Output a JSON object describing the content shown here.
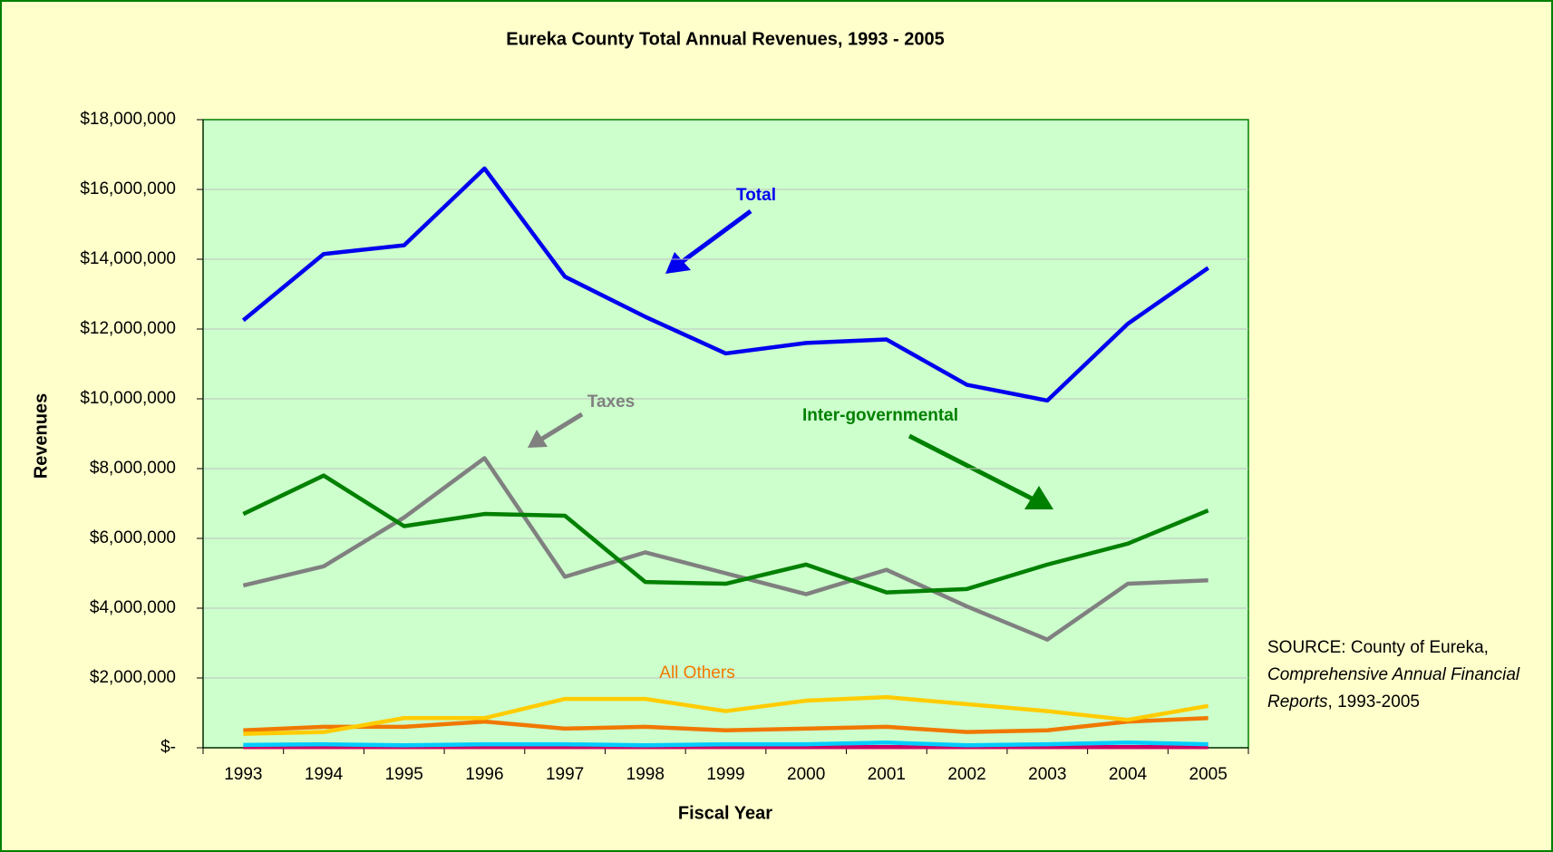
{
  "chart_data": {
    "type": "line",
    "title": "Eureka County Total Annual Revenues, 1993 - 2005",
    "x_label": "Fiscal Year",
    "y_label": "Revenues",
    "categories": [
      "1993",
      "1994",
      "1995",
      "1996",
      "1997",
      "1998",
      "1999",
      "2000",
      "2001",
      "2002",
      "2003",
      "2004",
      "2005"
    ],
    "series": [
      {
        "name": "Total",
        "color": "#0000ee",
        "values": [
          12250000,
          14150000,
          14400000,
          16600000,
          13500000,
          12350000,
          11300000,
          11600000,
          11700000,
          10400000,
          9950000,
          12150000,
          13750000
        ]
      },
      {
        "name": "Inter-governmental",
        "color": "#008000",
        "values": [
          6700000,
          7800000,
          6350000,
          6700000,
          6650000,
          4750000,
          4700000,
          5250000,
          4450000,
          4550000,
          5250000,
          5850000,
          6800000
        ]
      },
      {
        "name": "Taxes",
        "color": "#808080",
        "values": [
          4650000,
          5200000,
          6600000,
          8300000,
          4900000,
          5600000,
          5000000,
          4400000,
          5100000,
          4050000,
          3100000,
          4700000,
          4800000
        ]
      },
      {
        "color": "#ffcc00",
        "values": [
          400000,
          450000,
          850000,
          850000,
          1400000,
          1400000,
          1050000,
          1350000,
          1450000,
          1250000,
          1050000,
          800000,
          1200000
        ]
      },
      {
        "name": "All Others",
        "color": "#f07800",
        "values": [
          500000,
          600000,
          600000,
          750000,
          550000,
          600000,
          500000,
          550000,
          600000,
          450000,
          500000,
          750000,
          850000
        ]
      },
      {
        "color": "#00ccff",
        "values": [
          80000,
          100000,
          70000,
          100000,
          100000,
          70000,
          100000,
          100000,
          150000,
          70000,
          100000,
          150000,
          100000
        ]
      },
      {
        "color": "#cc0066",
        "values": [
          20000,
          20000,
          20000,
          20000,
          20000,
          20000,
          20000,
          20000,
          20000,
          20000,
          20000,
          20000,
          20000
        ]
      }
    ],
    "ylim": [
      0,
      18000000
    ],
    "yticks": [
      {
        "value": 0,
        "label": "$-"
      },
      {
        "value": 2000000,
        "label": "$2,000,000"
      },
      {
        "value": 4000000,
        "label": "$4,000,000"
      },
      {
        "value": 6000000,
        "label": "$6,000,000"
      },
      {
        "value": 8000000,
        "label": "$8,000,000"
      },
      {
        "value": 10000000,
        "label": "$10,000,000"
      },
      {
        "value": 12000000,
        "label": "$12,000,000"
      },
      {
        "value": 14000000,
        "label": "$14,000,000"
      },
      {
        "value": 16000000,
        "label": "$16,000,000"
      },
      {
        "value": 18000000,
        "label": "$18,000,000"
      }
    ],
    "grid": true,
    "source": {
      "prefix": "SOURCE: County of Eureka,",
      "italic": "Comprehensive Annual Financial Reports",
      "suffix": ", 1993-2005"
    }
  }
}
